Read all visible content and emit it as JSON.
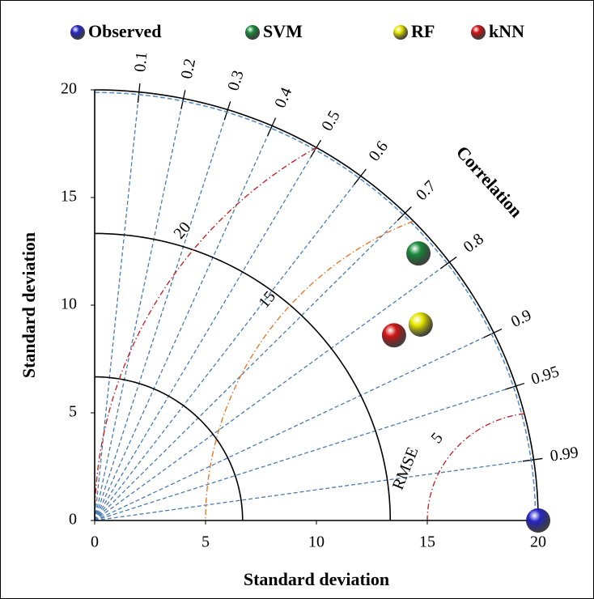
{
  "chart_data": {
    "type": "taylor",
    "x_label": "Standard deviation",
    "y_label": "Standard deviation",
    "correlation_label": "Correlation",
    "rmse_label": "RMSE",
    "xlim": [
      0,
      20
    ],
    "ylim": [
      0,
      20
    ],
    "xticks": [
      0,
      5,
      10,
      15,
      20
    ],
    "yticks": [
      0,
      5,
      10,
      15,
      20
    ],
    "correlation_ticks": [
      0.1,
      0.2,
      0.3,
      0.4,
      0.5,
      0.6,
      0.7,
      0.8,
      0.9,
      0.95,
      0.99
    ],
    "std_arcs": [
      6.67,
      13.33,
      20
    ],
    "rmse_contours": [
      5,
      15,
      20
    ],
    "series": [
      {
        "name": "Observed",
        "color": "#2626c8",
        "x": [
          20
        ],
        "values": [
          0
        ]
      },
      {
        "name": "SVM",
        "color": "#1b8c3c",
        "x": [
          14.6
        ],
        "values": [
          12.4
        ]
      },
      {
        "name": "RF",
        "color": "#e6e600",
        "x": [
          14.7
        ],
        "values": [
          9.1
        ]
      },
      {
        "name": "kNN",
        "color": "#d01414",
        "x": [
          13.5
        ],
        "values": [
          8.6
        ]
      }
    ]
  }
}
